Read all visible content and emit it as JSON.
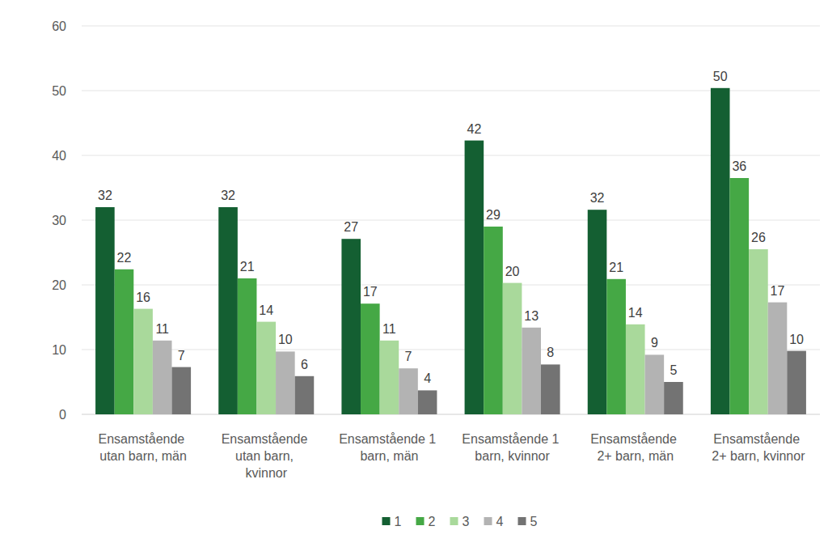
{
  "chart_data": {
    "type": "bar",
    "categories": [
      "Ensamstående utan barn, män",
      "Ensamstående utan barn, kvinnor",
      "Ensamstående 1 barn, män",
      "Ensamstående 1 barn, kvinnor",
      "Ensamstående 2+ barn, män",
      "Ensamstående 2+ barn, kvinnor"
    ],
    "series": [
      {
        "name": "1",
        "color": "#145f32",
        "values": [
          32.0,
          32.0,
          27.1,
          42.3,
          31.6,
          50.4
        ],
        "value_labels": [
          "32",
          "32",
          "27",
          "42",
          "32",
          "50"
        ]
      },
      {
        "name": "2",
        "color": "#45a845",
        "values": [
          22.4,
          21.0,
          17.1,
          29.0,
          20.9,
          36.5
        ],
        "value_labels": [
          "22",
          "21",
          "17",
          "29",
          "21",
          "36"
        ]
      },
      {
        "name": "3",
        "color": "#a9d99b",
        "values": [
          16.3,
          14.3,
          11.4,
          20.3,
          13.9,
          25.5
        ],
        "value_labels": [
          "16",
          "14",
          "11",
          "20",
          "14",
          "26"
        ]
      },
      {
        "name": "4",
        "color": "#b3b3b3",
        "values": [
          11.4,
          9.7,
          7.1,
          13.4,
          9.2,
          17.3
        ],
        "value_labels": [
          "11",
          "10",
          "7",
          "13",
          "9",
          "17"
        ]
      },
      {
        "name": "5",
        "color": "#737373",
        "values": [
          7.3,
          5.9,
          3.7,
          7.7,
          5.0,
          9.8
        ],
        "value_labels": [
          "7",
          "6",
          "4",
          "8",
          "5",
          "10"
        ]
      }
    ],
    "ylim": [
      0,
      60
    ],
    "yticks": [
      0,
      10,
      20,
      30,
      40,
      50,
      60
    ],
    "grid": true,
    "data_labels": true,
    "legend": "bottom"
  }
}
